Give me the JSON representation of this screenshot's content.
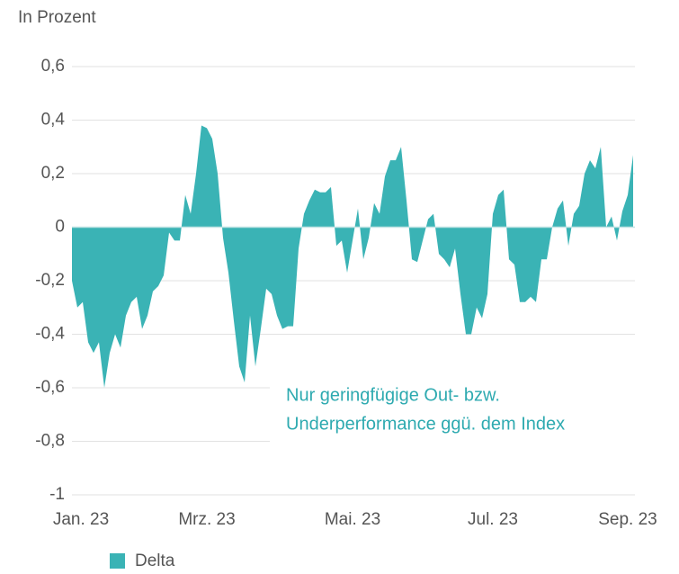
{
  "chart_data": {
    "type": "area",
    "ylabel": "In Prozent",
    "annotation": [
      "Nur geringfügige Out- bzw.",
      "Underperformance ggü. dem Index"
    ],
    "ylim": [
      -1,
      0.6
    ],
    "yticks": [
      {
        "value": 0.6,
        "label": "0,6"
      },
      {
        "value": 0.4,
        "label": "0,4"
      },
      {
        "value": 0.2,
        "label": "0,2"
      },
      0,
      {
        "value": -0.2,
        "label": "-0,2"
      },
      {
        "value": -0.4,
        "label": "-0,4"
      },
      {
        "value": -0.6,
        "label": "-0,6"
      },
      {
        "value": -0.8,
        "label": "-0,8"
      },
      -1
    ],
    "grid": true,
    "legend": "bottom",
    "categories": [
      "Jan. 23",
      null,
      null,
      null,
      null,
      null,
      null,
      null,
      null,
      null,
      null,
      null,
      null,
      null,
      null,
      null,
      null,
      null,
      null,
      null,
      null,
      null,
      null,
      null,
      null,
      "Mrz. 23",
      null,
      null,
      null,
      null,
      null,
      null,
      null,
      null,
      null,
      null,
      null,
      null,
      null,
      null,
      null,
      null,
      null,
      null,
      null,
      null,
      null,
      null,
      null,
      null,
      null,
      null,
      "Mai. 23",
      null,
      null,
      null,
      null,
      null,
      null,
      null,
      null,
      null,
      null,
      null,
      null,
      null,
      null,
      null,
      null,
      null,
      null,
      null,
      null,
      null,
      null,
      null,
      null,
      null,
      "Jul. 23",
      null,
      null,
      null,
      null,
      null,
      null,
      null,
      null,
      null,
      null,
      null,
      null,
      null,
      null,
      null,
      null,
      null,
      null,
      null,
      null,
      null,
      null,
      null,
      null,
      "Sep. 23",
      null
    ],
    "series": [
      {
        "name": "Delta",
        "color": "#3ab3b5",
        "values": [
          -0.2,
          -0.3,
          -0.28,
          -0.43,
          -0.47,
          -0.43,
          -0.6,
          -0.47,
          -0.4,
          -0.45,
          -0.33,
          -0.28,
          -0.26,
          -0.38,
          -0.33,
          -0.24,
          -0.22,
          -0.18,
          -0.02,
          -0.05,
          -0.05,
          0.12,
          0.05,
          0.2,
          0.38,
          0.37,
          0.33,
          0.2,
          -0.04,
          -0.17,
          -0.35,
          -0.52,
          -0.58,
          -0.33,
          -0.52,
          -0.38,
          -0.23,
          -0.25,
          -0.33,
          -0.38,
          -0.37,
          -0.37,
          -0.08,
          0.05,
          0.1,
          0.14,
          0.13,
          0.13,
          0.15,
          -0.07,
          -0.05,
          -0.17,
          -0.05,
          0.07,
          -0.12,
          -0.04,
          0.09,
          0.05,
          0.19,
          0.25,
          0.25,
          0.3,
          0.1,
          -0.12,
          -0.13,
          -0.05,
          0.03,
          0.05,
          -0.1,
          -0.12,
          -0.15,
          -0.08,
          -0.25,
          -0.4,
          -0.4,
          -0.3,
          -0.34,
          -0.25,
          0.05,
          0.12,
          0.14,
          -0.12,
          -0.14,
          -0.28,
          -0.28,
          -0.26,
          -0.28,
          -0.12,
          -0.12,
          0.0,
          0.07,
          0.1,
          -0.07,
          0.05,
          0.08,
          0.2,
          0.25,
          0.22,
          0.3,
          0.0,
          0.04,
          -0.05,
          0.06,
          0.12,
          0.27
        ]
      }
    ]
  }
}
